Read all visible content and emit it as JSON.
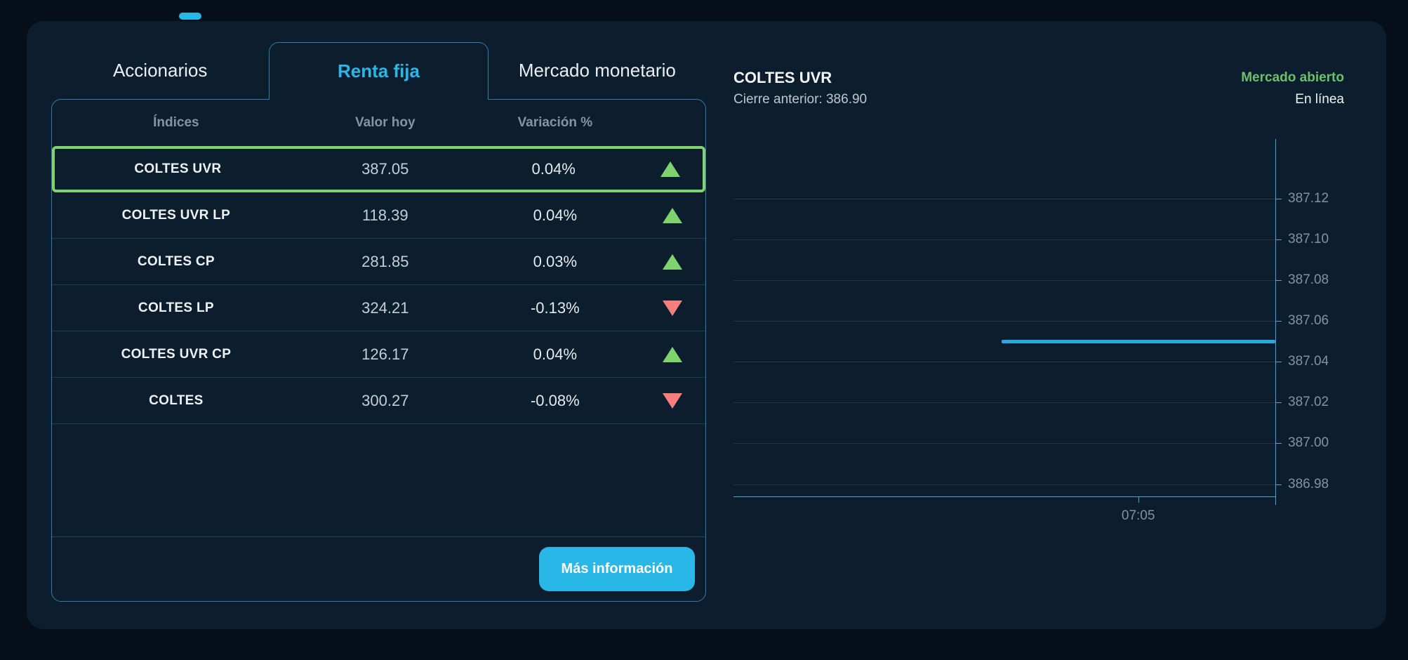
{
  "accent_color": "#29b7e8",
  "tabs": [
    {
      "label": "Accionarios",
      "active": false
    },
    {
      "label": "Renta fija",
      "active": true
    },
    {
      "label": "Mercado monetario",
      "active": false
    }
  ],
  "table": {
    "headers": [
      "Índices",
      "Valor hoy",
      "Variación %"
    ],
    "rows": [
      {
        "name": "COLTES UVR",
        "value": "387.05",
        "change": "0.04%",
        "direction": "up",
        "selected": true
      },
      {
        "name": "COLTES UVR LP",
        "value": "118.39",
        "change": "0.04%",
        "direction": "up",
        "selected": false
      },
      {
        "name": "COLTES CP",
        "value": "281.85",
        "change": "0.03%",
        "direction": "up",
        "selected": false
      },
      {
        "name": "COLTES LP",
        "value": "324.21",
        "change": "-0.13%",
        "direction": "down",
        "selected": false
      },
      {
        "name": "COLTES UVR CP",
        "value": "126.17",
        "change": "0.04%",
        "direction": "up",
        "selected": false
      },
      {
        "name": "COLTES",
        "value": "300.27",
        "change": "-0.08%",
        "direction": "down",
        "selected": false
      }
    ],
    "up_color": "#7fd36d",
    "down_color": "#f47f7d",
    "selected_border_color": "#82d36f",
    "more_info_label": "Más información"
  },
  "quote": {
    "title": "COLTES UVR",
    "previous_close_text": "Cierre anterior: 386.90",
    "market_status": "Mercado abierto",
    "connection_status": "En línea",
    "status_color": "#6cc06b"
  },
  "chart_data": {
    "type": "line",
    "title": "COLTES UVR",
    "previous_close": 386.9,
    "current_value": 387.05,
    "ylim": [
      386.974,
      387.145
    ],
    "yticks": [
      {
        "value": 387.12,
        "label": "387.12"
      },
      {
        "value": 387.1,
        "label": "387.10"
      },
      {
        "value": 387.08,
        "label": "387.08"
      },
      {
        "value": 387.06,
        "label": "387.06"
      },
      {
        "value": 387.04,
        "label": "387.04"
      },
      {
        "value": 387.02,
        "label": "387.02"
      },
      {
        "value": 387.0,
        "label": "387.00"
      },
      {
        "value": 386.98,
        "label": "386.98"
      }
    ],
    "xticks": [
      {
        "label": "07:05",
        "fraction": 0.747
      }
    ],
    "series": [
      {
        "name": "COLTES UVR",
        "value": 387.05,
        "start_fraction": 0.495,
        "end_fraction": 1.0,
        "color": "#29a9e2"
      }
    ],
    "grid": true,
    "legend": false,
    "axis_color": "#4d9fcd",
    "label_color": "#8093a4"
  }
}
